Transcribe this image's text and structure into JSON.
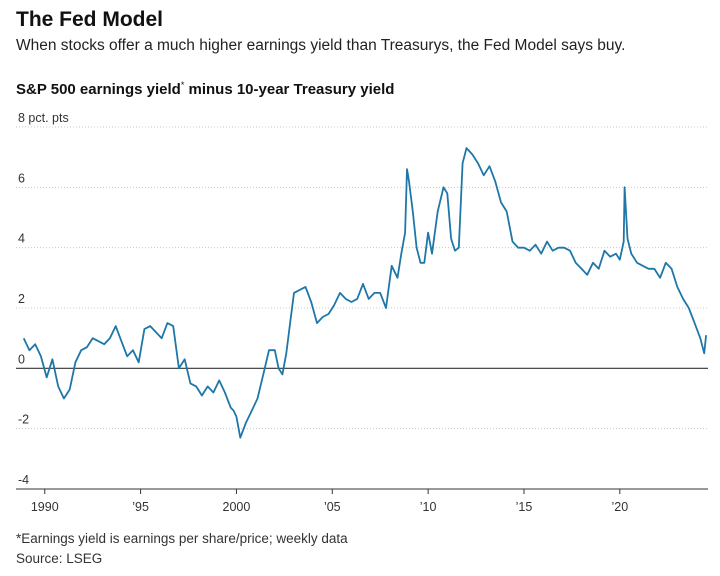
{
  "header": {
    "title": "The Fed Model",
    "subtitle": "When stocks offer a much higher earnings yield than Treasurys, the Fed Model says buy.",
    "chart_title_main": "S&P 500 earnings yield",
    "chart_title_mark": "*",
    "chart_title_rest": " minus 10-year Treasury yield"
  },
  "footer": {
    "note": "*Earnings yield is earnings per share/price; weekly data",
    "source": "Source: LSEG"
  },
  "colors": {
    "line": "#1f77a8",
    "zero_line": "#333333",
    "grid": "#c8c8c8"
  },
  "chart_data": {
    "type": "line",
    "title": "S&P 500 earnings yield* minus 10-year Treasury yield",
    "ylabel": "pct. pts",
    "ylim": [
      -4,
      8
    ],
    "xlim": [
      1988.5,
      2024.6
    ],
    "y_ticks": [
      {
        "value": 8,
        "label": "8 pct. pts"
      },
      {
        "value": 6,
        "label": "6"
      },
      {
        "value": 4,
        "label": "4"
      },
      {
        "value": 2,
        "label": "2"
      },
      {
        "value": 0,
        "label": "0"
      },
      {
        "value": -2,
        "label": "-2"
      },
      {
        "value": -4,
        "label": "-4"
      }
    ],
    "x_ticks": [
      {
        "value": 1990,
        "label": "1990"
      },
      {
        "value": 1995,
        "label": "’95"
      },
      {
        "value": 2000,
        "label": "2000"
      },
      {
        "value": 2005,
        "label": "’05"
      },
      {
        "value": 2010,
        "label": "’10"
      },
      {
        "value": 2015,
        "label": "’15"
      },
      {
        "value": 2020,
        "label": "’20"
      }
    ],
    "grid": "horizontal dotted",
    "series": [
      {
        "x": [
          1988.9,
          1989.2,
          1989.5,
          1989.8,
          1990.1,
          1990.4,
          1990.7,
          1991.0,
          1991.3,
          1991.6,
          1991.9,
          1992.2,
          1992.5,
          1992.8,
          1993.1,
          1993.4,
          1993.7,
          1994.0,
          1994.3,
          1994.6,
          1994.9,
          1995.2,
          1995.5,
          1995.8,
          1996.1,
          1996.4,
          1996.7,
          1997.0,
          1997.3,
          1997.6,
          1997.9,
          1998.2,
          1998.5,
          1998.8,
          1999.1,
          1999.4,
          1999.7,
          1999.85,
          2000.0,
          2000.2,
          2000.5,
          2000.8,
          2001.1,
          2001.4,
          2001.7,
          2002.0,
          2002.2,
          2002.4,
          2002.6,
          2002.8,
          2003.0,
          2003.3,
          2003.6,
          2003.9,
          2004.2,
          2004.5,
          2004.8,
          2005.1,
          2005.4,
          2005.7,
          2006.0,
          2006.3,
          2006.6,
          2006.9,
          2007.2,
          2007.5,
          2007.8,
          2008.1,
          2008.4,
          2008.6,
          2008.8,
          2008.9,
          2009.0,
          2009.2,
          2009.4,
          2009.6,
          2009.8,
          2010.0,
          2010.2,
          2010.5,
          2010.8,
          2011.0,
          2011.2,
          2011.4,
          2011.6,
          2011.8,
          2012.0,
          2012.3,
          2012.6,
          2012.9,
          2013.2,
          2013.5,
          2013.8,
          2014.1,
          2014.4,
          2014.7,
          2015.0,
          2015.3,
          2015.6,
          2015.9,
          2016.2,
          2016.5,
          2016.8,
          2017.1,
          2017.4,
          2017.7,
          2018.0,
          2018.3,
          2018.6,
          2018.9,
          2019.2,
          2019.5,
          2019.8,
          2020.0,
          2020.2,
          2020.25,
          2020.4,
          2020.6,
          2020.9,
          2021.2,
          2021.5,
          2021.8,
          2022.1,
          2022.4,
          2022.7,
          2023.0,
          2023.3,
          2023.6,
          2023.9,
          2024.2,
          2024.4,
          2024.5
        ],
        "y": [
          1.0,
          0.6,
          0.8,
          0.4,
          -0.3,
          0.3,
          -0.6,
          -1.0,
          -0.7,
          0.2,
          0.6,
          0.7,
          1.0,
          0.9,
          0.8,
          1.0,
          1.4,
          0.9,
          0.4,
          0.6,
          0.2,
          1.3,
          1.4,
          1.2,
          1.0,
          1.5,
          1.4,
          0.0,
          0.3,
          -0.5,
          -0.6,
          -0.9,
          -0.6,
          -0.8,
          -0.4,
          -0.8,
          -1.3,
          -1.4,
          -1.6,
          -2.3,
          -1.8,
          -1.4,
          -1.0,
          -0.2,
          0.6,
          0.6,
          0.0,
          -0.2,
          0.5,
          1.5,
          2.5,
          2.6,
          2.7,
          2.2,
          1.5,
          1.7,
          1.8,
          2.1,
          2.5,
          2.3,
          2.2,
          2.3,
          2.8,
          2.3,
          2.5,
          2.5,
          2.0,
          3.4,
          3.0,
          3.8,
          4.5,
          6.6,
          6.2,
          5.2,
          4.0,
          3.5,
          3.5,
          4.5,
          3.8,
          5.2,
          6.0,
          5.8,
          4.3,
          3.9,
          4.0,
          6.8,
          7.3,
          7.1,
          6.8,
          6.4,
          6.7,
          6.2,
          5.5,
          5.2,
          4.2,
          4.0,
          4.0,
          3.9,
          4.1,
          3.8,
          4.2,
          3.9,
          4.0,
          4.0,
          3.9,
          3.5,
          3.3,
          3.1,
          3.5,
          3.3,
          3.9,
          3.7,
          3.8,
          3.6,
          4.2,
          6.0,
          4.3,
          3.8,
          3.5,
          3.4,
          3.3,
          3.3,
          3.0,
          3.5,
          3.3,
          2.7,
          2.3,
          2.0,
          1.5,
          1.0,
          0.5,
          1.1
        ]
      }
    ]
  }
}
